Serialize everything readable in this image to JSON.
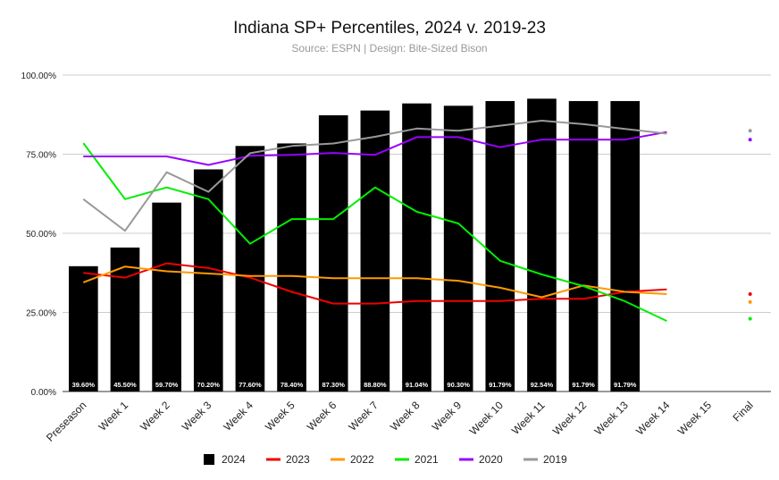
{
  "chart_data": {
    "type": "bar",
    "title": "Indiana SP+ Percentiles, 2024 v. 2019-23",
    "subtitle": "Source: ESPN | Design: Bite-Sized Bison",
    "categories": [
      "Preseason",
      "Week 1",
      "Week 2",
      "Week 3",
      "Week 4",
      "Week 5",
      "Week 6",
      "Week 7",
      "Week 8",
      "Week 9",
      "Week 10",
      "Week 11",
      "Week 12",
      "Week 13",
      "Week 14",
      "Week 15",
      "Final"
    ],
    "ylim": [
      0,
      100
    ],
    "y_ticks": [
      0,
      25,
      50,
      75,
      100
    ],
    "y_tick_labels": [
      "0.00%",
      "25.00%",
      "50.00%",
      "75.00%",
      "100.00%"
    ],
    "grid": true,
    "legend_position": "bottom",
    "bar_series": {
      "name": "2024",
      "color": "#000000",
      "values": [
        39.6,
        45.5,
        59.7,
        70.2,
        77.6,
        78.4,
        87.3,
        88.8,
        91.04,
        90.3,
        91.79,
        92.54,
        91.79,
        91.79,
        null,
        null,
        null
      ],
      "labels": [
        "39.60%",
        "45.50%",
        "59.70%",
        "70.20%",
        "77.60%",
        "78.40%",
        "87.30%",
        "88.80%",
        "91.04%",
        "90.30%",
        "91.79%",
        "92.54%",
        "91.79%",
        "91.79%",
        "",
        "",
        ""
      ]
    },
    "line_series": [
      {
        "name": "2023",
        "color": "#ee0000",
        "values": [
          37.5,
          36,
          40.5,
          39,
          36,
          31.5,
          27.8,
          27.8,
          28.6,
          28.6,
          28.6,
          29.3,
          29.3,
          31.5,
          32.3
        ],
        "final": 30.8
      },
      {
        "name": "2022",
        "color": "#ff9900",
        "values": [
          34.5,
          39.5,
          38,
          37.3,
          36.5,
          36.5,
          35.8,
          35.8,
          35.8,
          35,
          32.8,
          29.8,
          33.5,
          31.5,
          30.8
        ],
        "final": 28.3
      },
      {
        "name": "2021",
        "color": "#00ee00",
        "values": [
          78.5,
          60.8,
          64.5,
          60.8,
          46.7,
          54.5,
          54.5,
          64.5,
          56.8,
          53.1,
          41.3,
          37,
          33.3,
          28.5,
          22.3
        ],
        "final": 23
      },
      {
        "name": "2020",
        "color": "#9900ff",
        "values": [
          74.3,
          74.3,
          74.3,
          71.6,
          74.5,
          74.8,
          75.4,
          74.8,
          80.4,
          80.4,
          77.2,
          79.6,
          79.6,
          79.6,
          82
        ],
        "final": 79.6
      },
      {
        "name": "2019",
        "color": "#999999",
        "values": [
          60.8,
          50.8,
          69.3,
          63.1,
          75.3,
          77.6,
          78.4,
          80.5,
          83.1,
          82.4,
          84,
          85.6,
          84.5,
          83,
          81.5
        ],
        "final": 82.4
      }
    ]
  }
}
